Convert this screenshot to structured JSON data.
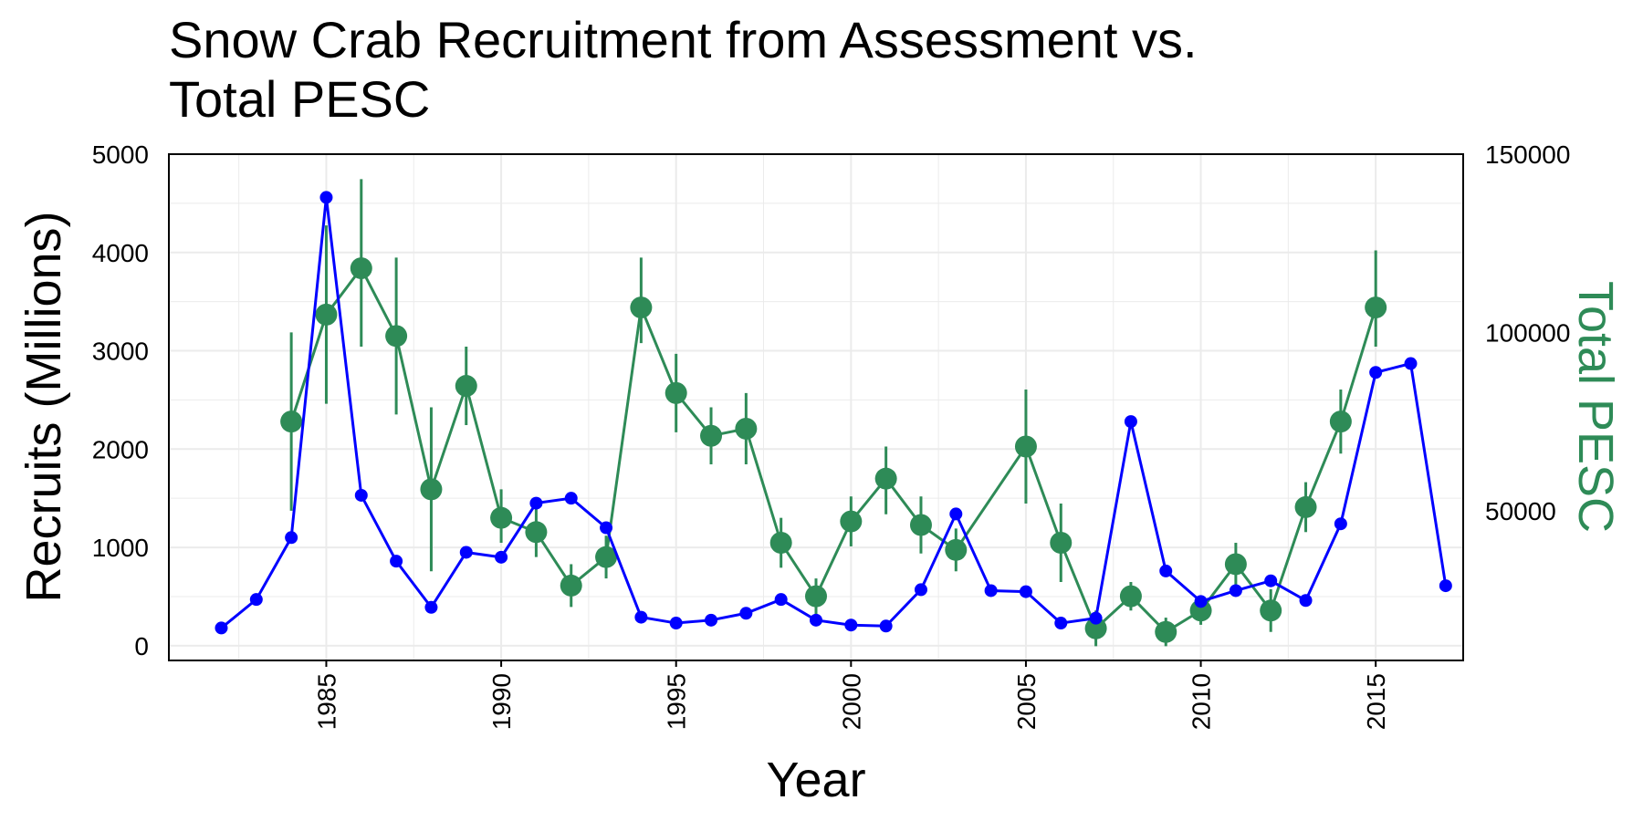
{
  "chart_data": {
    "type": "line",
    "title_lines": [
      "Snow Crab Recruitment from Assessment vs.",
      "Total PESC"
    ],
    "xlabel": "Year",
    "ylabel": "Recruits (Millions)",
    "y2label": "Total PESC",
    "xlim": [
      1980.5,
      2017.5
    ],
    "ylim": [
      -150,
      5000
    ],
    "y2lim": [
      8000,
      150000
    ],
    "x_ticks": [
      1985,
      1990,
      1995,
      2000,
      2005,
      2010,
      2015
    ],
    "y_ticks": [
      0,
      1000,
      2000,
      3000,
      4000,
      5000
    ],
    "y2_ticks": [
      50000,
      100000,
      150000
    ],
    "grid": true,
    "colors": {
      "recruits": "#0000ff",
      "pesc": "#2e8b57",
      "grid": "#ebebeb",
      "axis": "#000000"
    },
    "series": [
      {
        "axis": "left",
        "x": [
          1982,
          1983,
          1984,
          1985,
          1986,
          1987,
          1988,
          1989,
          1990,
          1991,
          1992,
          1993,
          1994,
          1995,
          1996,
          1997,
          1998,
          1999,
          2000,
          2001,
          2002,
          2003,
          2004,
          2005,
          2006,
          2007,
          2008,
          2009,
          2010,
          2011,
          2012,
          2013,
          2014,
          2015,
          2016,
          2017
        ],
        "y": [
          180,
          470,
          1100,
          4560,
          1530,
          860,
          390,
          950,
          900,
          1450,
          1500,
          1200,
          290,
          230,
          260,
          330,
          470,
          260,
          210,
          200,
          570,
          1340,
          560,
          550,
          230,
          280,
          2280,
          760,
          450,
          560,
          660,
          460,
          1240,
          2780,
          2870,
          610
        ]
      },
      {
        "axis": "right",
        "x": [
          1984,
          1985,
          1986,
          1987,
          1988,
          1989,
          1990,
          1991,
          1992,
          1993,
          1994,
          1995,
          1996,
          1997,
          1998,
          1999,
          2000,
          2001,
          2002,
          2003,
          2005,
          2006,
          2007,
          2008,
          2009,
          2010,
          2011,
          2012,
          2013,
          2014,
          2015
        ],
        "y": [
          75000,
          105000,
          118000,
          99000,
          56000,
          85000,
          48000,
          44000,
          29000,
          37000,
          107000,
          83000,
          71000,
          73000,
          41000,
          26000,
          47000,
          59000,
          46000,
          39000,
          68000,
          41000,
          17000,
          26000,
          16000,
          22000,
          35000,
          22000,
          51000,
          75000,
          107000
        ],
        "y_low": [
          50000,
          80000,
          96000,
          77000,
          33000,
          74000,
          41000,
          37000,
          23000,
          31000,
          97000,
          72000,
          63000,
          63000,
          34000,
          21000,
          40000,
          49000,
          38000,
          33000,
          52000,
          30000,
          12000,
          22000,
          12000,
          18000,
          29000,
          16000,
          44000,
          66000,
          96000
        ],
        "y_high": [
          100000,
          130000,
          143000,
          121000,
          79000,
          96000,
          56000,
          51000,
          35000,
          43000,
          121000,
          94000,
          79000,
          83000,
          48000,
          31000,
          54000,
          68000,
          54000,
          45000,
          84000,
          52000,
          22000,
          30000,
          20000,
          26000,
          41000,
          28000,
          58000,
          84000,
          123000
        ]
      }
    ]
  }
}
